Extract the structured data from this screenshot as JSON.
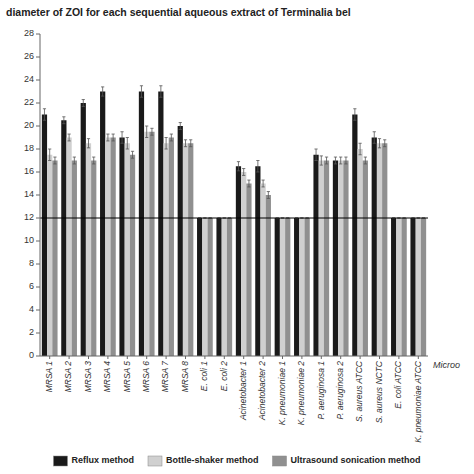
{
  "chart_data": {
    "type": "bar",
    "title": "diameter of ZOI for each sequential aqueous extract of Terminalia bel",
    "annotations": [
      "Microo"
    ],
    "categories": [
      "MRSA 1",
      "MRSA 2",
      "MRSA 3",
      "MRSA 4",
      "MRSA 5",
      "MRSA 6",
      "MRSA 7",
      "MRSA 8",
      "E. coli 1",
      "E. coli 2",
      "Acinetobacter 1",
      "Acinetobacter 2",
      "K. pneumoniae 1",
      "K. pneumoniae 2",
      "P. aeruginosa 1",
      "P. aeruginosa 2",
      "S. aureus ATCC",
      "S. aureus NCTC",
      "E. coli ATCC",
      "K. pneumoniae ATCC"
    ],
    "series": [
      {
        "name": "Reflux method",
        "color": "#1a1a1a",
        "values": [
          21,
          20.5,
          22,
          23,
          19,
          23,
          23,
          20,
          12,
          12,
          16.5,
          16.5,
          12,
          12,
          17.5,
          17,
          21,
          19,
          12,
          12
        ],
        "errors": [
          0.5,
          0.3,
          0.3,
          0.4,
          0.5,
          0.5,
          0.5,
          0.3,
          0,
          0,
          0.4,
          0.5,
          0,
          0,
          0.5,
          0.3,
          0.5,
          0.5,
          0,
          0
        ]
      },
      {
        "name": "Bottle-shaker method",
        "color": "#d0d0d0",
        "values": [
          17.5,
          19,
          18.5,
          19,
          18.5,
          19.5,
          18.5,
          18.5,
          12,
          12,
          16,
          15,
          12,
          12,
          17,
          17,
          18,
          18.5,
          12,
          12
        ],
        "errors": [
          0.5,
          0.3,
          0.4,
          0.3,
          0.5,
          0.5,
          0.5,
          0.3,
          0,
          0,
          0.3,
          0.3,
          0,
          0,
          0.4,
          0.3,
          0.5,
          0.4,
          0,
          0
        ]
      },
      {
        "name": "Ultrasound sonication method",
        "color": "#909090",
        "values": [
          17,
          17,
          17,
          19,
          17.5,
          19.5,
          19,
          18.5,
          12,
          12,
          15,
          14,
          12,
          12,
          17,
          17,
          17,
          18.5,
          12,
          12
        ],
        "errors": [
          0.3,
          0.3,
          0.3,
          0.3,
          0.3,
          0.3,
          0.3,
          0.3,
          0,
          0,
          0.3,
          0.3,
          0,
          0,
          0.3,
          0.3,
          0.3,
          0.3,
          0,
          0
        ]
      }
    ],
    "hline": 12,
    "ylim": [
      0,
      28
    ],
    "yticks": [
      0,
      2,
      4,
      6,
      8,
      10,
      12,
      14,
      16,
      18,
      20,
      22,
      24,
      26,
      28
    ],
    "grid": false,
    "legend": "bottom"
  }
}
